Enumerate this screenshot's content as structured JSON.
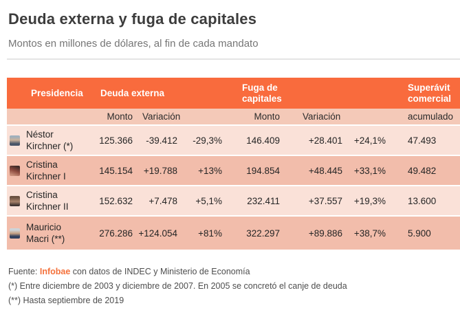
{
  "header": {
    "title": "Deuda externa y fuga de capitales",
    "subtitle": "Montos en millones de dólares, al fin de cada mandato"
  },
  "table": {
    "headers": {
      "presidencia": "Presidencia",
      "deuda_externa": "Deuda externa",
      "fuga_capitales": "Fuga de capitales",
      "superavit_comercial": "Superávit comercial"
    },
    "subheaders": {
      "deuda_monto": "Monto",
      "deuda_variacion": "Variación",
      "fuga_monto": "Monto",
      "fuga_variacion": "Variación",
      "superavit_acumulado": "acumulado"
    },
    "rows": [
      {
        "name_line1": "Néstor",
        "name_line2": "Kirchner (*)",
        "avatar": "nestor-kirchner-photo",
        "deuda_monto": "125.366",
        "deuda_variacion": "-39.412",
        "deuda_variacion_pct": "-29,3%",
        "fuga_monto": "146.409",
        "fuga_variacion": "+28.401",
        "fuga_variacion_pct": "+24,1%",
        "superavit_acumulado": "47.493"
      },
      {
        "name_line1": "Cristina",
        "name_line2": "Kirchner I",
        "avatar": "cristina-kirchner-1-photo",
        "deuda_monto": "145.154",
        "deuda_variacion": "+19.788",
        "deuda_variacion_pct": "+13%",
        "fuga_monto": "194.854",
        "fuga_variacion": "+48.445",
        "fuga_variacion_pct": "+33,1%",
        "superavit_acumulado": "49.482"
      },
      {
        "name_line1": "Cristina",
        "name_line2": "Kirchner II",
        "avatar": "cristina-kirchner-2-photo",
        "deuda_monto": "152.632",
        "deuda_variacion": "+7.478",
        "deuda_variacion_pct": "+5,1%",
        "fuga_monto": "232.411",
        "fuga_variacion": "+37.557",
        "fuga_variacion_pct": "+19,3%",
        "superavit_acumulado": "13.600"
      },
      {
        "name_line1": "Mauricio",
        "name_line2": "Macri (**)",
        "avatar": "mauricio-macri-photo",
        "deuda_monto": "276.286",
        "deuda_variacion": "+124.054",
        "deuda_variacion_pct": "+81%",
        "fuga_monto": "322.297",
        "fuga_variacion": "+89.886",
        "fuga_variacion_pct": "+38,7%",
        "superavit_acumulado": "5.900"
      }
    ]
  },
  "footer": {
    "source_prefix": "Fuente: ",
    "source_name": "Infobae",
    "source_suffix": " con datos de INDEC y Ministerio de Economía",
    "note_1": "(*) Entre diciembre de 2003 y diciembre de 2007. En 2005 se concretó el canje de deuda",
    "note_2": "(**) Hasta septiembre de 2019"
  },
  "colors": {
    "header_bg": "#f96b3d",
    "subheader_bg": "#f4c9b8",
    "row_light": "#fae1d8",
    "row_dark": "#f2bdab",
    "accent": "#f4713b",
    "title_text": "#3c3c3c",
    "subtitle_text": "#757575"
  },
  "chart_data": {
    "type": "table",
    "title": "Deuda externa y fuga de capitales",
    "subtitle": "Montos en millones de dólares, al fin de cada mandato",
    "units": "millones de dólares",
    "columns": [
      "Presidencia",
      "Deuda externa Monto",
      "Deuda externa Variación",
      "Deuda externa Variación %",
      "Fuga de capitales Monto",
      "Fuga de capitales Variación",
      "Fuga de capitales Variación %",
      "Superávit comercial acumulado"
    ],
    "rows": [
      [
        "Néstor Kirchner (*)",
        125366,
        -39412,
        -29.3,
        146409,
        28401,
        24.1,
        47493
      ],
      [
        "Cristina Kirchner I",
        145154,
        19788,
        13.0,
        194854,
        48445,
        33.1,
        49482
      ],
      [
        "Cristina Kirchner II",
        152632,
        7478,
        5.1,
        232411,
        37557,
        19.3,
        13600
      ],
      [
        "Mauricio Macri (**)",
        276286,
        124054,
        81.0,
        322297,
        89886,
        38.7,
        5900
      ]
    ],
    "source": "Infobae con datos de INDEC y Ministerio de Economía",
    "notes": [
      "(*) Entre diciembre de 2003 y diciembre de 2007. En 2005 se concretó el canje de deuda",
      "(**) Hasta septiembre de 2019"
    ]
  }
}
